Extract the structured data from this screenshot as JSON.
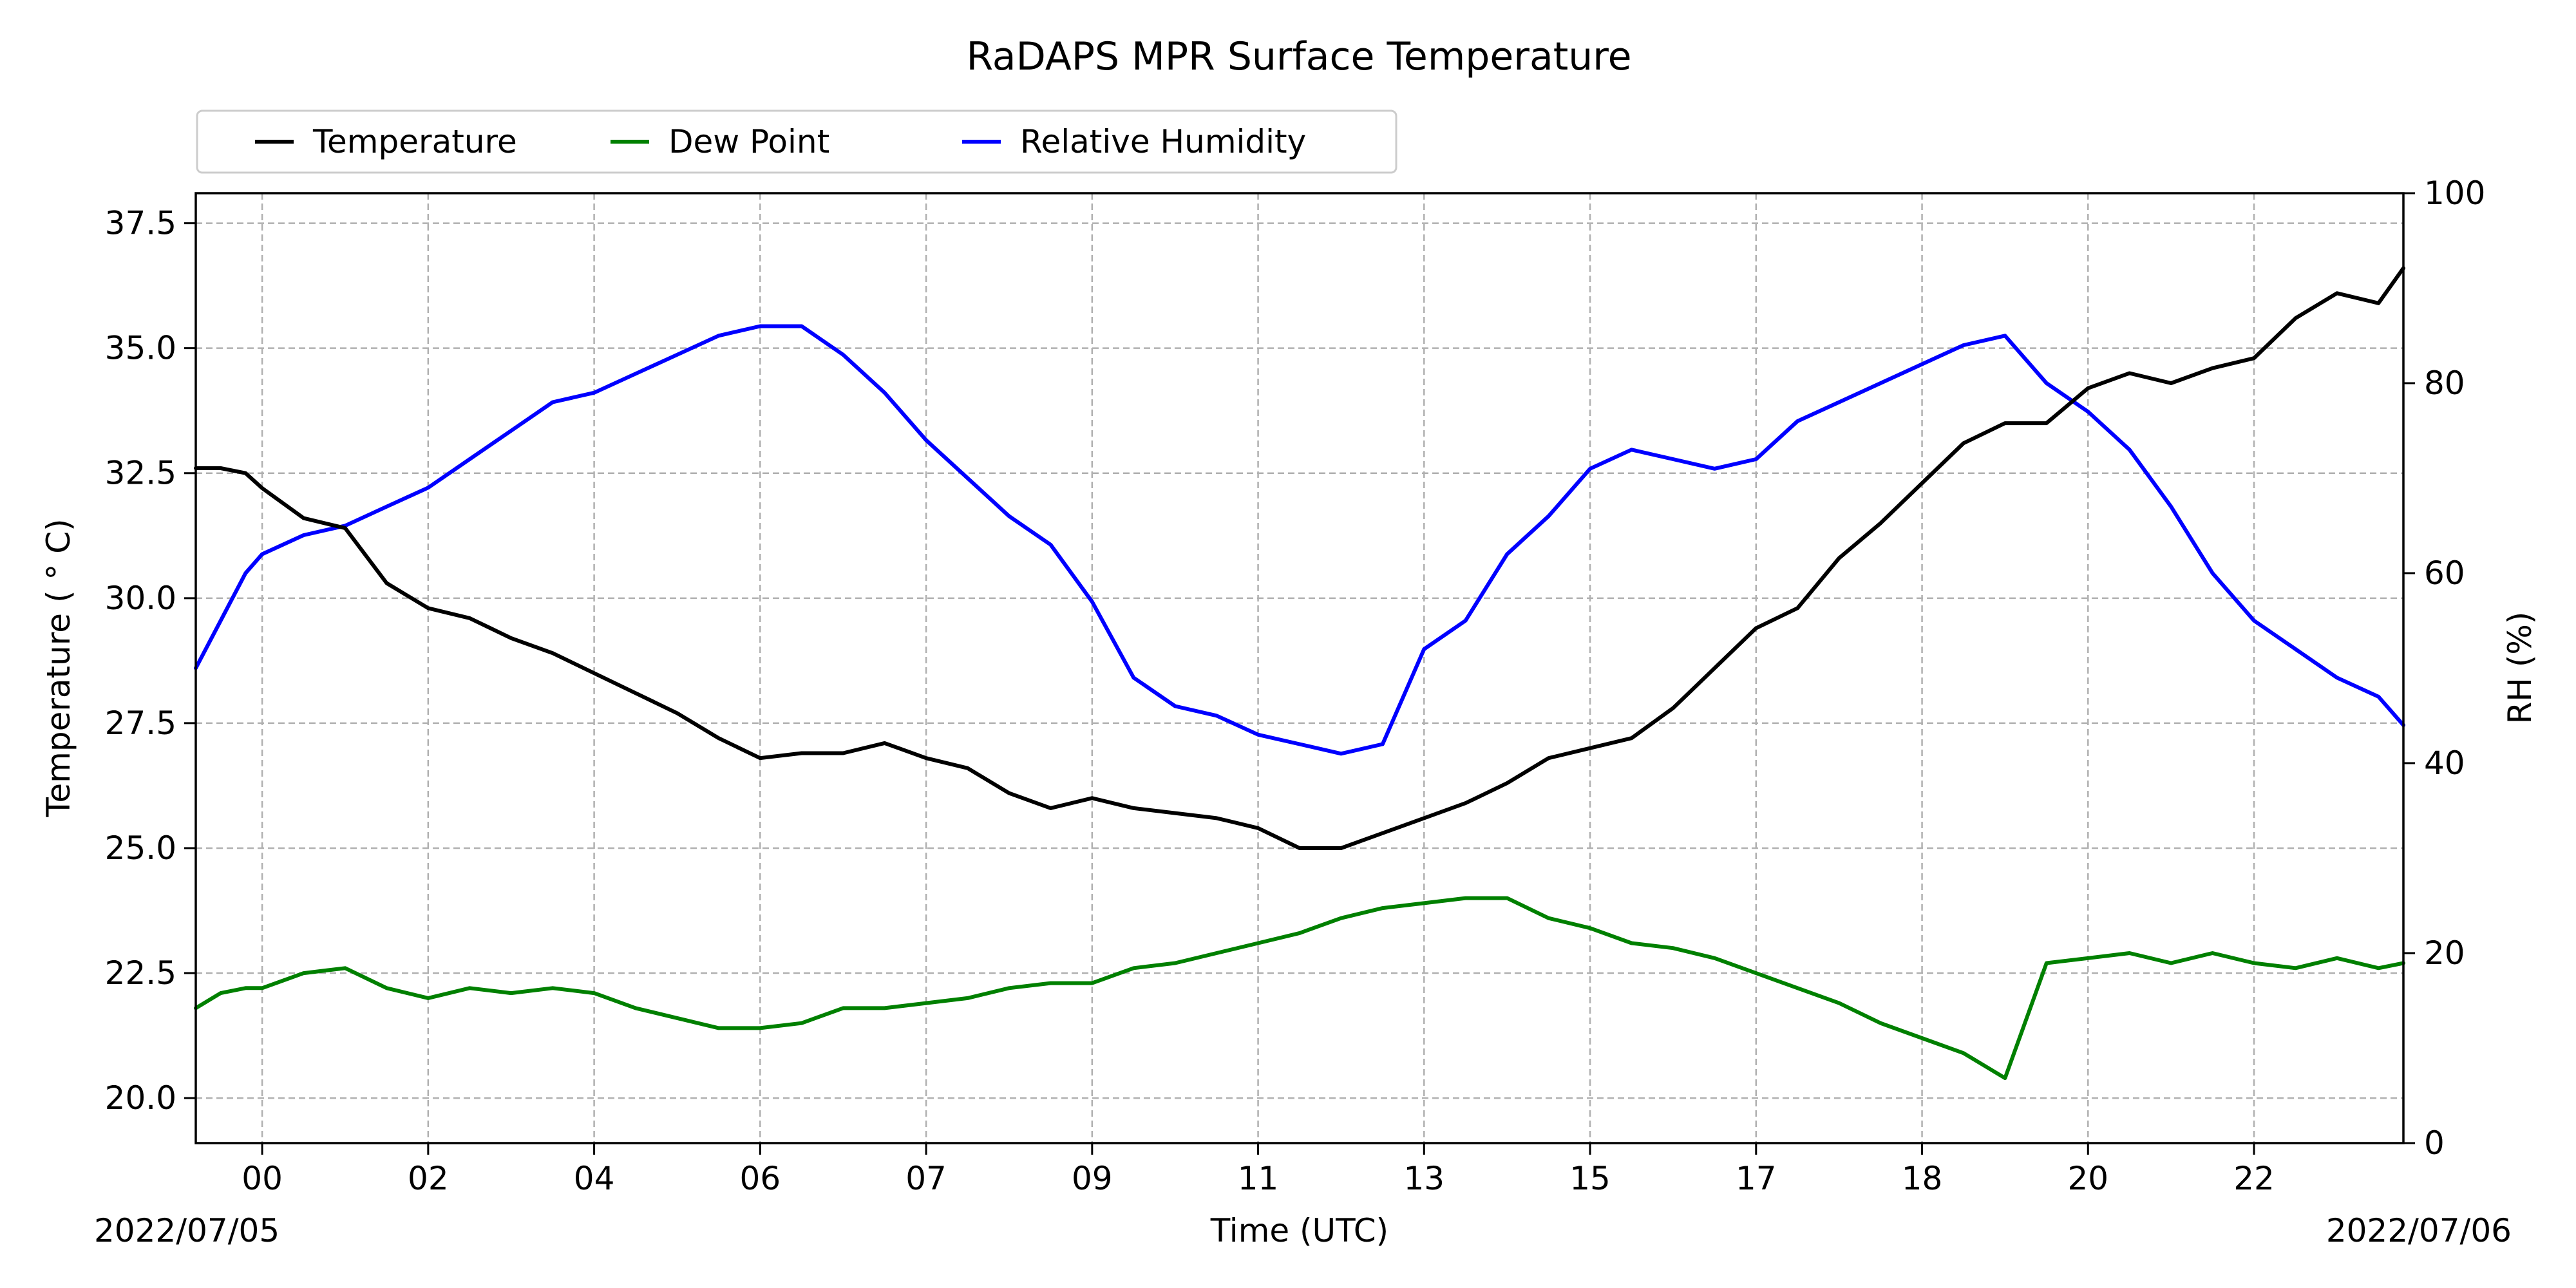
{
  "chart_data": {
    "type": "line",
    "title": "RaDAPS MPR Surface Temperature",
    "xlabel": "Time (UTC)",
    "ylabel": "Temperature ($^\\circ$C)",
    "ylabel_display": "Temperature ( ° C)",
    "y2label": "RH (%)",
    "x_tick_labels": [
      "00",
      "02",
      "04",
      "06",
      "07",
      "09",
      "11",
      "13",
      "15",
      "17",
      "18",
      "20",
      "22"
    ],
    "x_start_label": "2022/07/05",
    "x_end_label": "2022/07/06",
    "ylim": [
      19.1,
      38.1
    ],
    "y_ticks": [
      20.0,
      22.5,
      25.0,
      27.5,
      30.0,
      32.5,
      35.0,
      37.5
    ],
    "y2lim": [
      0,
      100
    ],
    "y2_ticks": [
      0,
      20,
      40,
      60,
      80,
      100
    ],
    "grid": true,
    "legend_position": "top-left, above plot",
    "x_hours": [
      -0.8,
      -0.5,
      -0.2,
      0.0,
      0.5,
      1.0,
      1.5,
      2.0,
      2.5,
      3.0,
      3.5,
      4.0,
      4.5,
      5.0,
      5.5,
      6.0,
      6.5,
      7.0,
      7.5,
      8.0,
      8.5,
      9.0,
      9.5,
      10.0,
      10.5,
      11.0,
      11.5,
      12.0,
      12.5,
      13.0,
      13.5,
      14.0,
      14.5,
      15.0,
      15.5,
      16.0,
      16.5,
      17.0,
      17.5,
      18.0,
      18.5,
      19.0,
      19.5,
      20.0,
      20.5,
      21.0,
      21.5,
      22.0,
      22.5,
      23.0,
      23.5,
      24.0,
      24.5,
      25.0,
      25.5,
      25.8
    ],
    "series": [
      {
        "name": "Temperature",
        "color": "#000000",
        "axis": "left",
        "values": [
          32.6,
          32.6,
          32.5,
          32.2,
          31.6,
          31.4,
          30.3,
          29.8,
          29.6,
          29.2,
          28.9,
          28.5,
          28.1,
          27.7,
          27.2,
          26.8,
          26.9,
          26.9,
          27.1,
          26.8,
          26.6,
          26.1,
          25.8,
          26.0,
          25.8,
          25.7,
          25.6,
          25.4,
          25.0,
          25.0,
          25.3,
          25.6,
          25.9,
          26.3,
          26.8,
          27.0,
          27.2,
          27.8,
          28.6,
          29.4,
          29.8,
          30.8,
          31.5,
          32.3,
          33.1,
          33.5,
          33.5,
          34.2,
          34.5,
          34.3,
          34.6,
          34.8,
          35.6,
          36.1,
          35.9,
          36.6
        ]
      },
      {
        "name": "Dew Point",
        "color": "#008000",
        "axis": "left",
        "values": [
          21.8,
          22.1,
          22.2,
          22.2,
          22.5,
          22.6,
          22.2,
          22.0,
          22.2,
          22.1,
          22.2,
          22.1,
          21.8,
          21.6,
          21.4,
          21.4,
          21.5,
          21.8,
          21.8,
          21.9,
          22.0,
          22.2,
          22.3,
          22.3,
          22.6,
          22.7,
          22.9,
          23.1,
          23.3,
          23.6,
          23.8,
          23.9,
          24.0,
          24.0,
          23.6,
          23.4,
          23.1,
          23.0,
          22.8,
          22.5,
          22.2,
          21.9,
          21.5,
          21.2,
          20.9,
          20.4,
          22.7,
          22.8,
          22.9,
          22.7,
          22.9,
          22.7,
          22.6,
          22.8,
          22.6,
          22.7
        ]
      },
      {
        "name": "Relative Humidity",
        "color": "#0000ff",
        "axis": "right",
        "values": [
          50,
          55,
          60,
          62,
          64,
          65,
          67,
          69,
          72,
          75,
          78,
          79,
          81,
          83,
          85,
          86,
          86,
          83,
          79,
          74,
          70,
          66,
          63,
          57,
          49,
          46,
          45,
          43,
          42,
          41,
          42,
          52,
          55,
          62,
          66,
          71,
          73,
          72,
          71,
          72,
          76,
          78,
          80,
          82,
          84,
          85,
          80,
          77,
          73,
          67,
          60,
          55,
          52,
          49,
          47,
          44
        ]
      }
    ]
  }
}
